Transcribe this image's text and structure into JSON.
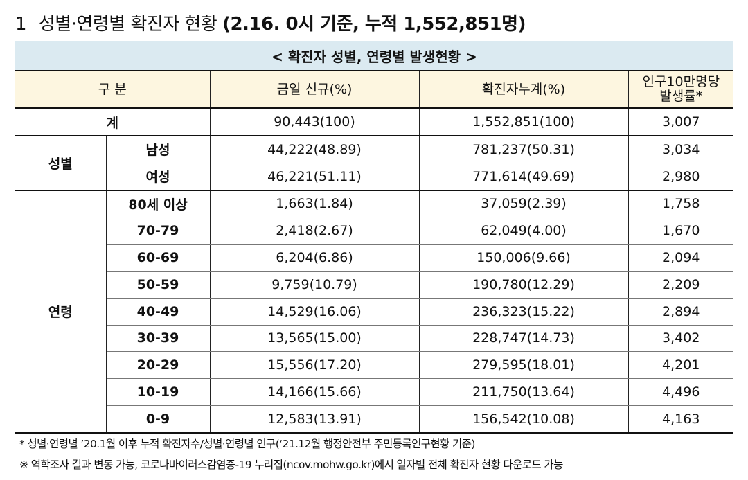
{
  "title": {
    "number": "1",
    "main": "성별·연령별 확진자 현황",
    "detail": "(2.16. 0시 기준, 누적 1,552,851명)"
  },
  "table": {
    "caption": "< 확진자 성별, 연령별 발생현황 >",
    "headers": {
      "category": "구 분",
      "daily_new": "금일 신규(%)",
      "cumulative": "확진자누계(%)",
      "rate_line1": "인구10만명당",
      "rate_line2": "발생률*"
    },
    "total": {
      "label": "계",
      "daily_new": "90,443(100)",
      "cumulative": "1,552,851(100)",
      "rate": "3,007"
    },
    "sex_group_label": "성별",
    "sex_rows": [
      {
        "label": "남성",
        "daily_new": "44,222(48.89)",
        "cumulative": "781,237(50.31)",
        "rate": "3,034"
      },
      {
        "label": "여성",
        "daily_new": "46,221(51.11)",
        "cumulative": "771,614(49.69)",
        "rate": "2,980"
      }
    ],
    "age_group_label": "연령",
    "age_rows": [
      {
        "label": "80세 이상",
        "daily_new": "1,663(1.84)",
        "cumulative": "37,059(2.39)",
        "rate": "1,758"
      },
      {
        "label": "70-79",
        "daily_new": "2,418(2.67)",
        "cumulative": "62,049(4.00)",
        "rate": "1,670"
      },
      {
        "label": "60-69",
        "daily_new": "6,204(6.86)",
        "cumulative": "150,006(9.66)",
        "rate": "2,094"
      },
      {
        "label": "50-59",
        "daily_new": "9,759(10.79)",
        "cumulative": "190,780(12.29)",
        "rate": "2,209"
      },
      {
        "label": "40-49",
        "daily_new": "14,529(16.06)",
        "cumulative": "236,323(15.22)",
        "rate": "2,894"
      },
      {
        "label": "30-39",
        "daily_new": "13,565(15.00)",
        "cumulative": "228,747(14.73)",
        "rate": "3,402"
      },
      {
        "label": "20-29",
        "daily_new": "15,556(17.20)",
        "cumulative": "279,595(18.01)",
        "rate": "4,201"
      },
      {
        "label": "10-19",
        "daily_new": "14,166(15.66)",
        "cumulative": "211,750(13.64)",
        "rate": "4,496"
      },
      {
        "label": "0-9",
        "daily_new": "12,583(13.91)",
        "cumulative": "156,542(10.08)",
        "rate": "4,163"
      }
    ]
  },
  "footnotes": [
    "* 성별·연령별 ’20.1월 이후 누적 확진자수/성별·연령별 인구(‘21.12월 행정안전부 주민등록인구현황 기준)",
    "※ 역학조사 결과 변동 가능, 코로나바이러스감염증-19 누리집(ncov.mohw.go.kr)에서 일자별 전체 확진자 현황 다운로드 가능"
  ]
}
